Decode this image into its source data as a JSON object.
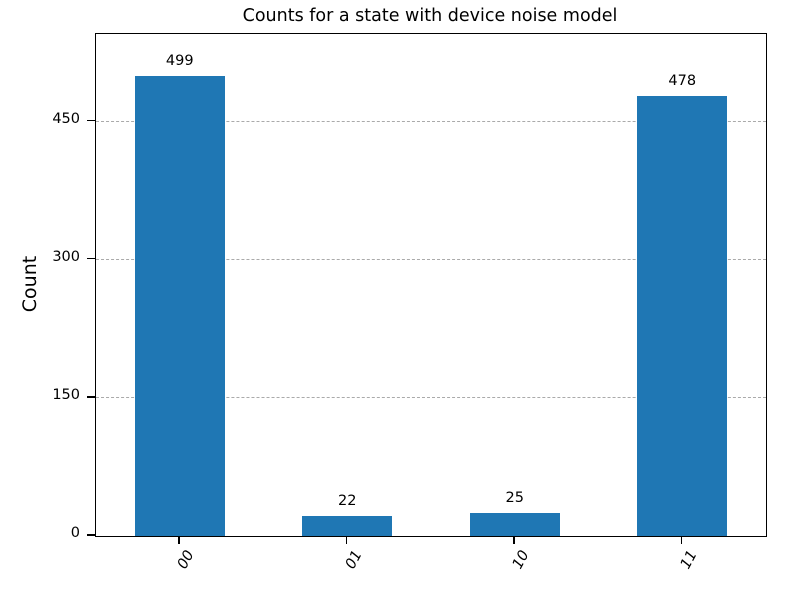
{
  "chart_data": {
    "type": "bar",
    "title": "Counts for a state with device noise model",
    "xlabel": "",
    "ylabel": "Count",
    "categories": [
      "00",
      "01",
      "10",
      "11"
    ],
    "values": [
      499,
      22,
      25,
      478
    ],
    "yticks": [
      0,
      150,
      300,
      450
    ],
    "ylim": [
      0,
      545
    ],
    "grid": "horizontal dashed lines at y ticks",
    "legend": "none",
    "bar_color": "#1f77b4",
    "grid_color": "#aaaaaa",
    "x_tick_label_style": "italic rotated"
  }
}
